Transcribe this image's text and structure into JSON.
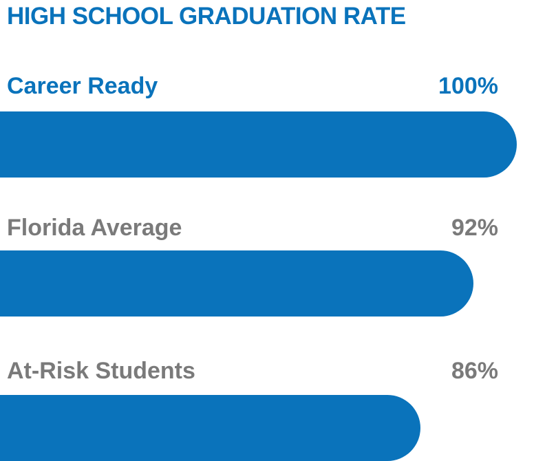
{
  "colors": {
    "accent": "#0a73bb",
    "muted": "#7a7a7a",
    "bar": "#0a73bb"
  },
  "chart_data": {
    "type": "bar",
    "orientation": "horizontal",
    "title": "HIGH SCHOOL GRADUATION RATE",
    "categories": [
      "Career Ready",
      "Florida Average",
      "At-Risk Students"
    ],
    "values": [
      100,
      92,
      86
    ],
    "value_labels": [
      "100%",
      "92%",
      "86%"
    ],
    "unit": "%",
    "xlim": [
      0,
      100
    ],
    "grid": false,
    "legend": "none",
    "label_colors": [
      "accent",
      "muted",
      "muted"
    ]
  }
}
